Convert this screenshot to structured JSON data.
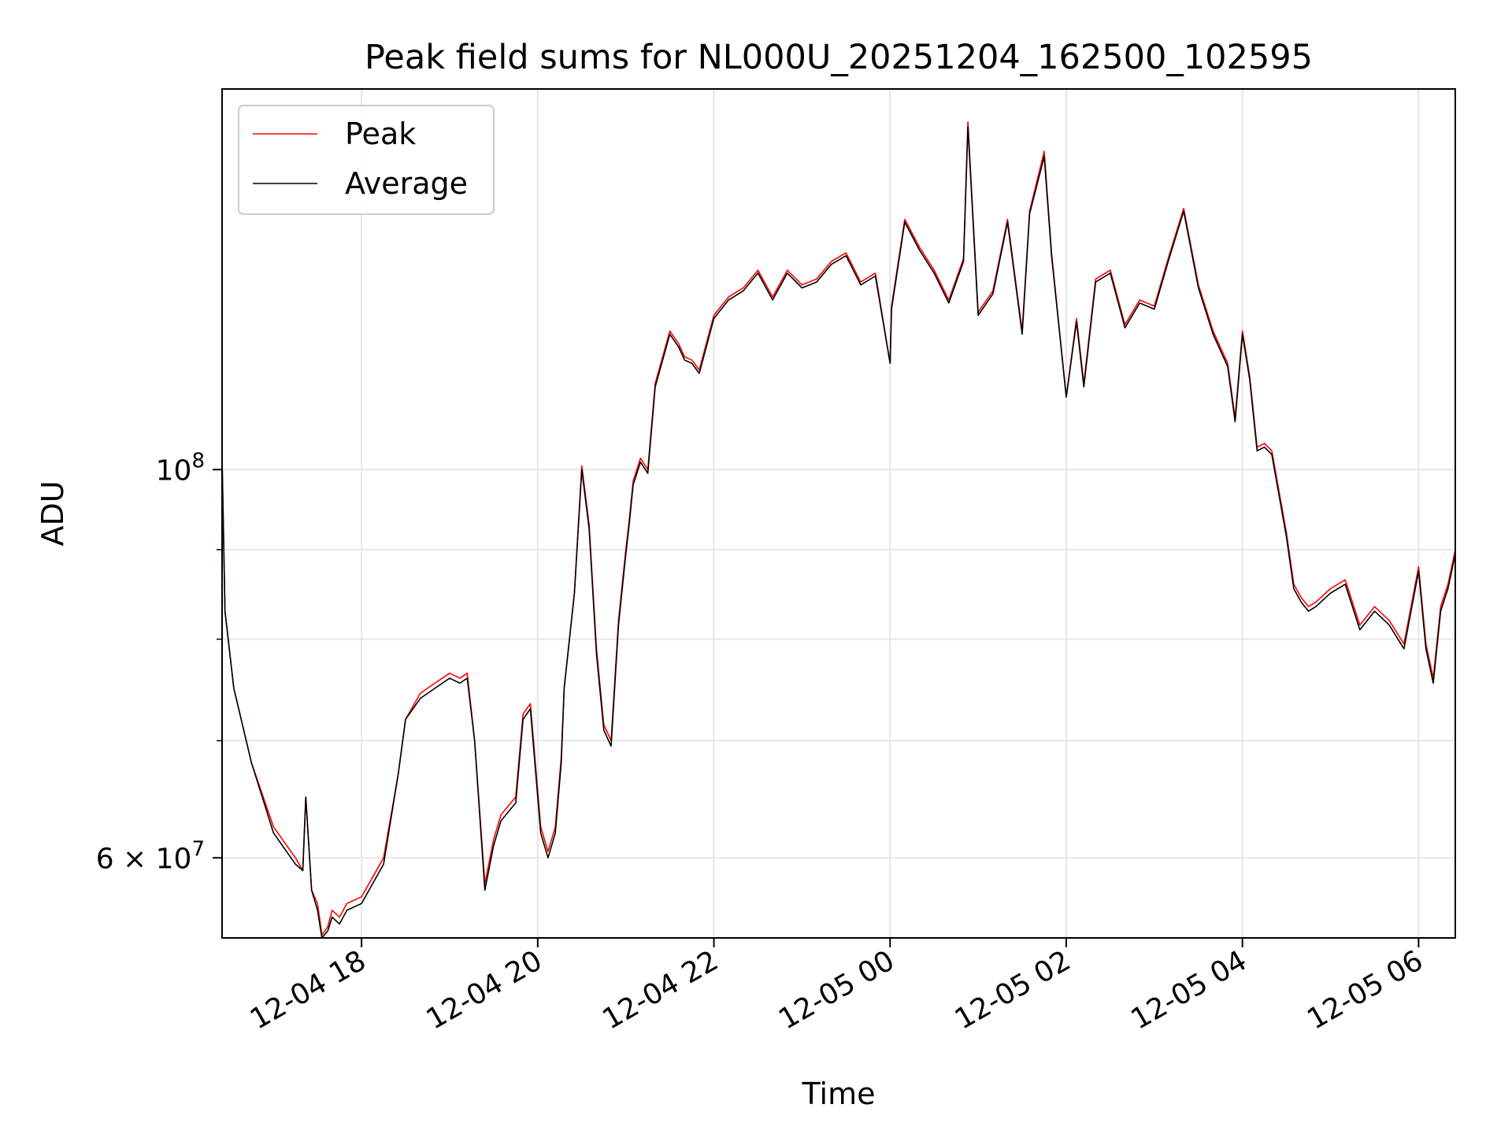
{
  "chart_data": {
    "type": "line",
    "title": "Peak field sums for NL000U_20251204_162500_102595",
    "xlabel": "Time",
    "ylabel": "ADU",
    "yscale": "log",
    "ylim": [
      54000000,
      165000000
    ],
    "xlim": [
      "2025-12-04 16:25",
      "2025-12-05 06:25"
    ],
    "grid": true,
    "legend_position": "upper left",
    "x_ticks": [
      {
        "label": "12-04 18",
        "t": "2025-12-04 18:00"
      },
      {
        "label": "12-04 20",
        "t": "2025-12-04 20:00"
      },
      {
        "label": "12-04 22",
        "t": "2025-12-04 22:00"
      },
      {
        "label": "12-05 00",
        "t": "2025-12-05 00:00"
      },
      {
        "label": "12-05 02",
        "t": "2025-12-05 02:00"
      },
      {
        "label": "12-05 04",
        "t": "2025-12-05 04:00"
      },
      {
        "label": "12-05 06",
        "t": "2025-12-05 06:00"
      }
    ],
    "y_ticks": [
      {
        "label": "10",
        "exp": "8",
        "value": 100000000
      },
      {
        "label": "6 × 10",
        "exp": "7",
        "value": 60000000
      }
    ],
    "x": [
      "2025-12-04 16:25",
      "2025-12-04 16:27",
      "2025-12-04 16:33",
      "2025-12-04 16:45",
      "2025-12-04 17:00",
      "2025-12-04 17:15",
      "2025-12-04 17:20",
      "2025-12-04 17:22",
      "2025-12-04 17:26",
      "2025-12-04 17:30",
      "2025-12-04 17:33",
      "2025-12-04 17:37",
      "2025-12-04 17:40",
      "2025-12-04 17:45",
      "2025-12-04 17:50",
      "2025-12-04 18:00",
      "2025-12-04 18:15",
      "2025-12-04 18:25",
      "2025-12-04 18:30",
      "2025-12-04 18:40",
      "2025-12-04 18:50",
      "2025-12-04 19:00",
      "2025-12-04 19:07",
      "2025-12-04 19:12",
      "2025-12-04 19:17",
      "2025-12-04 19:24",
      "2025-12-04 19:30",
      "2025-12-04 19:35",
      "2025-12-04 19:45",
      "2025-12-04 19:50",
      "2025-12-04 19:55",
      "2025-12-04 20:02",
      "2025-12-04 20:07",
      "2025-12-04 20:12",
      "2025-12-04 20:16",
      "2025-12-04 20:18",
      "2025-12-04 20:25",
      "2025-12-04 20:30",
      "2025-12-04 20:35",
      "2025-12-04 20:40",
      "2025-12-04 20:45",
      "2025-12-04 20:50",
      "2025-12-04 20:55",
      "2025-12-04 21:00",
      "2025-12-04 21:02",
      "2025-12-04 21:05",
      "2025-12-04 21:10",
      "2025-12-04 21:15",
      "2025-12-04 21:20",
      "2025-12-04 21:30",
      "2025-12-04 21:36",
      "2025-12-04 21:40",
      "2025-12-04 21:45",
      "2025-12-04 21:50",
      "2025-12-04 22:00",
      "2025-12-04 22:10",
      "2025-12-04 22:20",
      "2025-12-04 22:30",
      "2025-12-04 22:40",
      "2025-12-04 22:50",
      "2025-12-04 23:00",
      "2025-12-04 23:10",
      "2025-12-04 23:20",
      "2025-12-04 23:30",
      "2025-12-04 23:40",
      "2025-12-04 23:50",
      "2025-12-05 00:00",
      "2025-12-05 00:01",
      "2025-12-05 00:10",
      "2025-12-05 00:20",
      "2025-12-05 00:30",
      "2025-12-05 00:40",
      "2025-12-05 00:50",
      "2025-12-05 00:53",
      "2025-12-05 01:00",
      "2025-12-05 01:10",
      "2025-12-05 01:20",
      "2025-12-05 01:30",
      "2025-12-05 01:35",
      "2025-12-05 01:45",
      "2025-12-05 01:50",
      "2025-12-05 02:00",
      "2025-12-05 02:07",
      "2025-12-05 02:12",
      "2025-12-05 02:20",
      "2025-12-05 02:30",
      "2025-12-05 02:40",
      "2025-12-05 02:50",
      "2025-12-05 03:00",
      "2025-12-05 03:10",
      "2025-12-05 03:20",
      "2025-12-05 03:30",
      "2025-12-05 03:40",
      "2025-12-05 03:50",
      "2025-12-05 03:55",
      "2025-12-05 04:00",
      "2025-12-05 04:05",
      "2025-12-05 04:10",
      "2025-12-05 04:15",
      "2025-12-05 04:20",
      "2025-12-05 04:30",
      "2025-12-05 04:35",
      "2025-12-05 04:40",
      "2025-12-05 04:45",
      "2025-12-05 04:50",
      "2025-12-05 05:00",
      "2025-12-05 05:10",
      "2025-12-05 05:20",
      "2025-12-05 05:30",
      "2025-12-05 05:40",
      "2025-12-05 05:50",
      "2025-12-05 06:00",
      "2025-12-05 06:05",
      "2025-12-05 06:10",
      "2025-12-05 06:15",
      "2025-12-05 06:20",
      "2025-12-05 06:25"
    ],
    "series": [
      {
        "name": "Peak",
        "color": "#ff0000",
        "values": [
          101500000,
          83000000,
          75000000,
          68000000,
          62500000,
          60000000,
          59000000,
          65000000,
          57500000,
          56500000,
          54200000,
          54800000,
          56000000,
          55500000,
          56500000,
          57000000,
          60000000,
          67000000,
          72000000,
          74500000,
          75500000,
          76500000,
          76000000,
          76500000,
          70000000,
          58000000,
          61500000,
          63500000,
          65000000,
          72500000,
          73500000,
          62500000,
          60500000,
          62500000,
          68500000,
          75000000,
          85000000,
          100500000,
          93000000,
          79000000,
          71500000,
          70000000,
          82000000,
          90000000,
          93000000,
          98500000,
          101500000,
          100000000,
          112000000,
          120000000,
          118000000,
          116000000,
          115500000,
          114000000,
          122500000,
          125500000,
          127000000,
          130000000,
          125500000,
          130000000,
          127500000,
          128500000,
          131500000,
          133000000,
          128000000,
          129500000,
          115000000,
          124000000,
          139000000,
          134000000,
          130000000,
          125000000,
          132000000,
          158000000,
          123000000,
          126500000,
          139000000,
          120000000,
          140500000,
          152000000,
          133000000,
          110000000,
          122000000,
          112000000,
          128500000,
          130000000,
          121000000,
          125000000,
          124000000,
          132500000,
          141000000,
          127500000,
          120000000,
          115000000,
          107000000,
          120000000,
          113000000,
          103000000,
          103500000,
          102500000,
          92000000,
          86000000,
          84500000,
          83500000,
          84000000,
          85500000,
          86500000,
          81500000,
          83500000,
          82000000,
          79500000,
          88000000,
          79500000,
          76000000,
          83500000,
          86000000,
          90000000
        ]
      },
      {
        "name": "Average",
        "color": "#000000",
        "values": [
          101500000,
          83000000,
          75000000,
          68000000,
          62000000,
          59500000,
          59000000,
          65000000,
          57500000,
          56000000,
          54000000,
          54500000,
          55500000,
          55000000,
          56000000,
          56500000,
          59500000,
          67000000,
          72000000,
          74000000,
          75000000,
          76000000,
          75500000,
          76000000,
          70000000,
          57500000,
          61000000,
          63000000,
          64500000,
          72000000,
          73000000,
          62000000,
          60000000,
          62000000,
          68000000,
          75000000,
          85000000,
          100000000,
          92500000,
          78500000,
          71000000,
          69500000,
          81500000,
          89500000,
          92500000,
          98000000,
          101000000,
          99500000,
          111500000,
          119500000,
          117500000,
          115500000,
          115000000,
          113500000,
          122000000,
          125000000,
          126500000,
          129500000,
          125000000,
          129500000,
          127000000,
          128000000,
          131000000,
          132500000,
          127500000,
          129000000,
          115000000,
          123500000,
          138500000,
          133500000,
          129500000,
          124500000,
          131500000,
          157000000,
          122500000,
          126000000,
          138500000,
          119500000,
          140000000,
          151000000,
          132500000,
          110000000,
          121500000,
          111500000,
          128000000,
          129500000,
          120500000,
          124500000,
          123500000,
          132000000,
          140500000,
          127000000,
          119500000,
          114500000,
          106500000,
          119500000,
          112500000,
          102500000,
          103000000,
          102000000,
          91500000,
          85500000,
          84000000,
          83000000,
          83500000,
          85000000,
          86000000,
          81000000,
          83000000,
          81500000,
          79000000,
          87500000,
          79000000,
          75500000,
          83000000,
          85500000,
          89500000
        ]
      }
    ]
  }
}
